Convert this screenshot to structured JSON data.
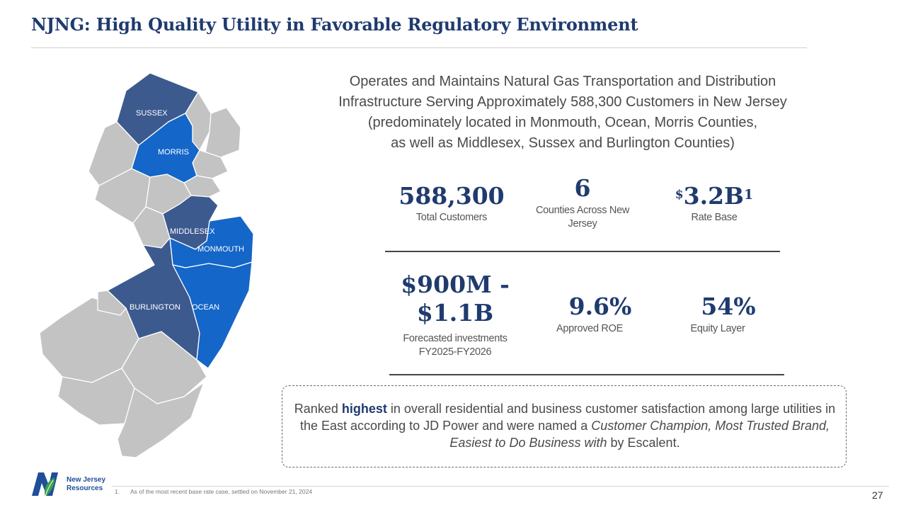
{
  "title": "NJNG: High Quality Utility in Favorable Regulatory Environment",
  "intro": {
    "line1": "Operates and Maintains Natural Gas Transportation and Distribution",
    "line2": "Infrastructure Serving Approximately 588,300 Customers in New Jersey",
    "line3": "(predominately located in Monmouth, Ocean, Morris Counties,",
    "line4": "as well as Middlesex, Sussex and Burlington Counties)"
  },
  "map": {
    "counties": {
      "sussex": "SUSSEX",
      "morris": "MORRIS",
      "middlesex": "MIDDLESEX",
      "monmouth": "MONMOUTH",
      "burlington": "BURLINGTON",
      "ocean": "OCEAN"
    },
    "colors": {
      "dark": "#3d5a8f",
      "bright": "#1466c8",
      "gray": "#c3c3c3",
      "border": "#ffffff"
    }
  },
  "stats": {
    "customers": {
      "value": "588,300",
      "label": "Total Customers"
    },
    "counties": {
      "value": "6",
      "label_line1": "Counties Across New",
      "label_line2": "Jersey"
    },
    "rate_base": {
      "prefix": "$",
      "value": "3.2B",
      "sup": "1",
      "label": "Rate Base"
    },
    "investments": {
      "value_line1": "$900M -",
      "value_line2": "$1.1B",
      "label_line1": "Forecasted investments",
      "label_line2": "FY2025-FY2026"
    },
    "roe": {
      "value": "9.6%",
      "label": "Approved ROE"
    },
    "equity": {
      "value": "54%",
      "label": "Equity Layer"
    }
  },
  "callout": {
    "t1": "Ranked ",
    "t2": "highest",
    "t3": " in overall residential and business customer satisfaction among large utilities in the East according to JD Power and were named a ",
    "t4": "Customer Champion, Most Trusted Brand, Easiest to Do Business with",
    "t5": " by Escalent."
  },
  "logo": {
    "line1": "New Jersey",
    "line2": "Resources"
  },
  "footnote": {
    "number": "1.",
    "text": "As of the most recent base rate case, settled on November 21, 2024"
  },
  "page_number": "27",
  "colors": {
    "navy": "#1f3b6e",
    "text": "#4a4a4a"
  }
}
